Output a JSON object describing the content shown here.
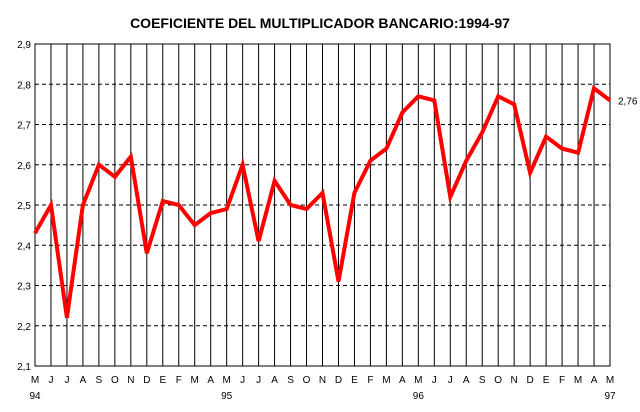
{
  "chart_data": {
    "type": "line",
    "title": "COEFICIENTE DEL MULTIPLICADOR BANCARIO:1994-97",
    "xlabel": "",
    "ylabel": "",
    "ylim": [
      2.1,
      2.9
    ],
    "yticks": [
      "2,1",
      "2,2",
      "2,3",
      "2,4",
      "2,5",
      "2,6",
      "2,7",
      "2,8",
      "2,9"
    ],
    "grid": true,
    "legend": "none",
    "line_color": "#ff0000",
    "categories": [
      "M",
      "J",
      "J",
      "A",
      "S",
      "O",
      "N",
      "D",
      "E",
      "F",
      "M",
      "A",
      "M",
      "J",
      "J",
      "A",
      "S",
      "O",
      "N",
      "D",
      "E",
      "F",
      "M",
      "A",
      "M",
      "J",
      "J",
      "A",
      "S",
      "O",
      "N",
      "D",
      "E",
      "F",
      "M",
      "A",
      "M"
    ],
    "year_labels": [
      {
        "index": 0,
        "label": "94"
      },
      {
        "index": 12,
        "label": "95"
      },
      {
        "index": 24,
        "label": "96"
      },
      {
        "index": 36,
        "label": "97"
      }
    ],
    "series": [
      {
        "values": [
          2.43,
          2.5,
          2.22,
          2.5,
          2.6,
          2.57,
          2.62,
          2.38,
          2.51,
          2.5,
          2.45,
          2.48,
          2.49,
          2.6,
          2.41,
          2.56,
          2.5,
          2.49,
          2.53,
          2.31,
          2.53,
          2.61,
          2.64,
          2.73,
          2.77,
          2.76,
          2.52,
          2.61,
          2.68,
          2.77,
          2.75,
          2.58,
          2.67,
          2.64,
          2.63,
          2.79,
          2.76
        ]
      }
    ],
    "end_label": "2,76"
  }
}
